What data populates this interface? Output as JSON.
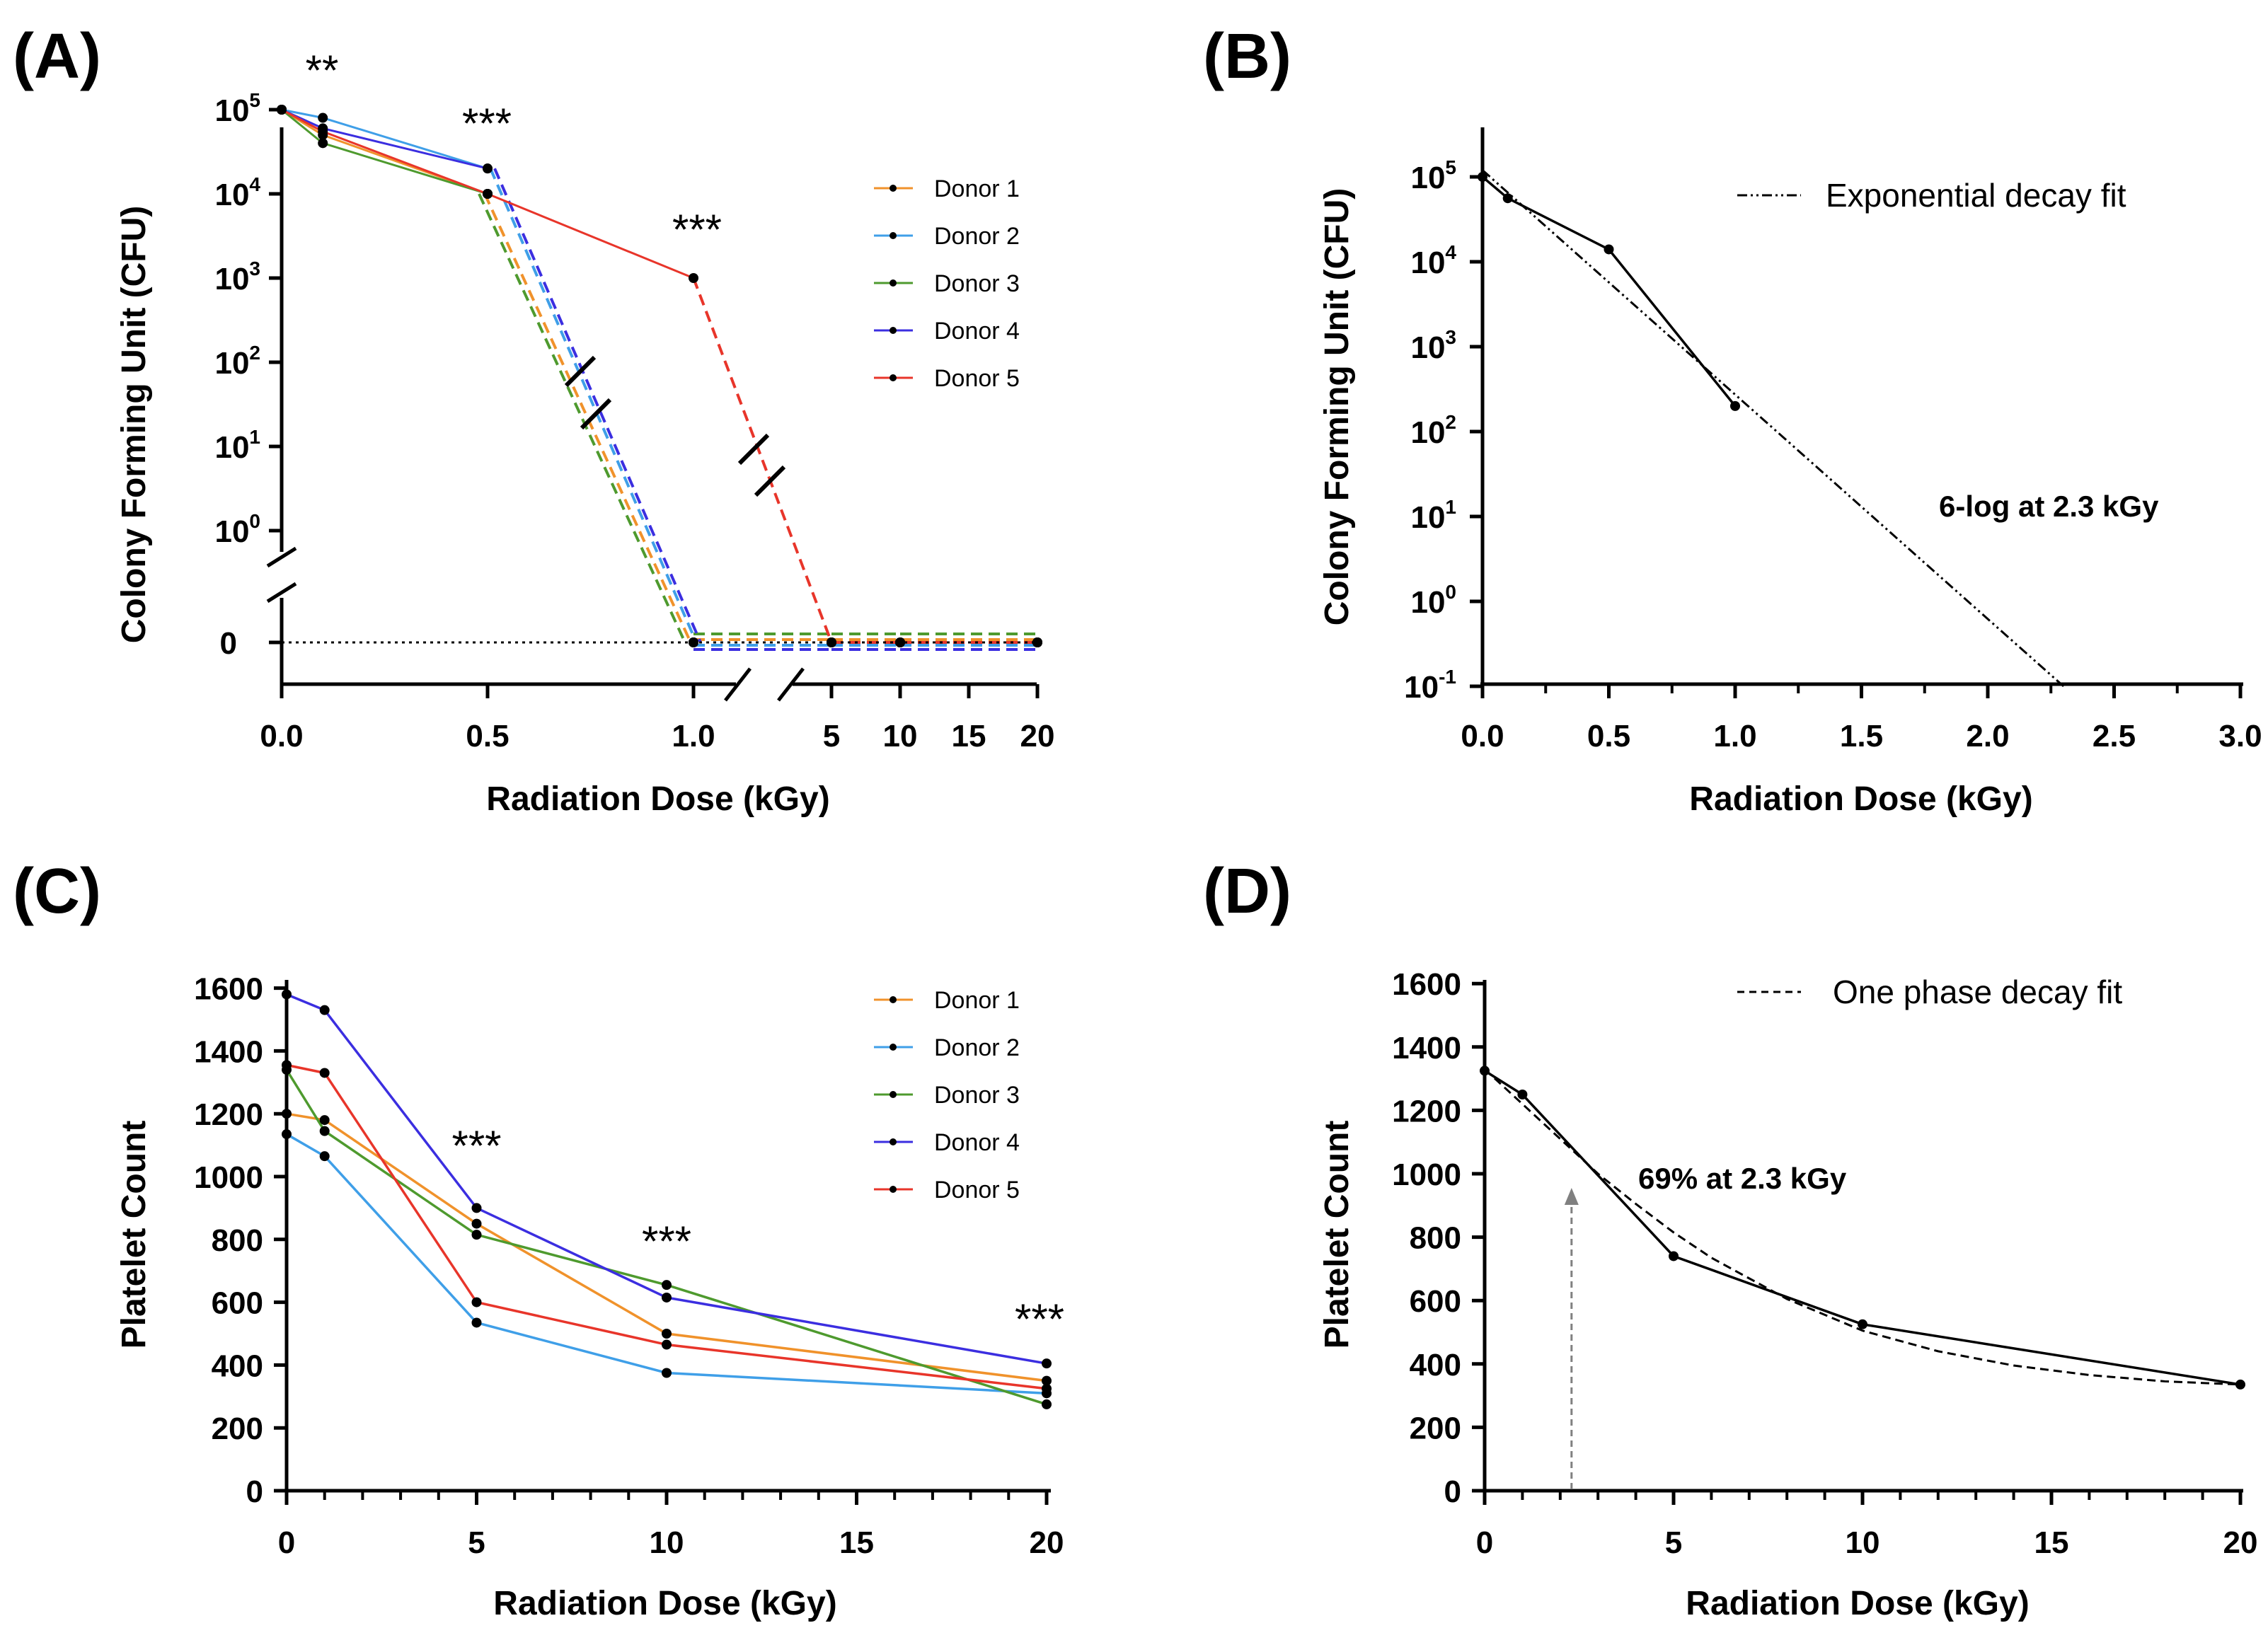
{
  "colors": {
    "donor1": "#f0922b",
    "donor2": "#3f9fe8",
    "donor3": "#4e9a2e",
    "donor4": "#3b2ee0",
    "donor5": "#e8352a",
    "fit": "#000000",
    "arrow": "#808080"
  },
  "chart_data": [
    {
      "panel": "(A)",
      "type": "line",
      "title": "",
      "xlabel": "Radiation Dose (kGy)",
      "ylabel": "Colony Forming Unit (CFU)",
      "yscale": "log, broken axis with 0",
      "x_ticks_left": [
        "0.0",
        "0.5",
        "1.0"
      ],
      "x_ticks_right": [
        "5",
        "10",
        "15",
        "20"
      ],
      "y_tick_exponents": [
        "5",
        "4",
        "3",
        "2",
        "1",
        "0"
      ],
      "y_zero_label": "0",
      "legend": [
        "Donor 1",
        "Donor 2",
        "Donor 3",
        "Donor 4",
        "Donor 5"
      ],
      "x": [
        0,
        0.1,
        0.5,
        1.0,
        5,
        10,
        20
      ],
      "series": [
        {
          "name": "Donor 1",
          "values": [
            100000,
            50000,
            10000,
            0,
            0,
            0,
            0
          ]
        },
        {
          "name": "Donor 2",
          "values": [
            100000,
            80000,
            20000,
            0,
            0,
            0,
            0
          ]
        },
        {
          "name": "Donor 3",
          "values": [
            100000,
            40000,
            10000,
            0,
            0,
            0,
            0
          ]
        },
        {
          "name": "Donor 4",
          "values": [
            100000,
            60000,
            20000,
            0,
            0,
            0,
            0
          ]
        },
        {
          "name": "Donor 5",
          "values": [
            100000,
            55000,
            10000,
            1000,
            0,
            0,
            0
          ]
        }
      ],
      "significance": [
        {
          "x": 0.1,
          "label": "**"
        },
        {
          "x": 0.5,
          "label": "***"
        },
        {
          "x": 1.0,
          "label": "***"
        }
      ]
    },
    {
      "panel": "(B)",
      "type": "line",
      "xlabel": "Radiation Dose (kGy)",
      "ylabel": "Colony Forming Unit (CFU)",
      "yscale": "log",
      "xlim": [
        0,
        3.0
      ],
      "x_ticks": [
        "0.0",
        "0.5",
        "1.0",
        "1.5",
        "2.0",
        "2.5",
        "3.0"
      ],
      "y_tick_exponents": [
        "5",
        "4",
        "3",
        "2",
        "1",
        "0",
        "-1"
      ],
      "legend": [
        "Exponential decay fit"
      ],
      "annotation": "6-log at 2.3 kGy",
      "x": [
        0,
        0.1,
        0.5,
        1.0
      ],
      "values": [
        100000,
        56000,
        14000,
        200
      ],
      "fit_x": [
        0,
        2.3
      ],
      "fit_y": [
        120000,
        0.1
      ]
    },
    {
      "panel": "(C)",
      "type": "line",
      "xlabel": "Radiation Dose (kGy)",
      "ylabel": "Platelet Count",
      "ylim": [
        0,
        1600
      ],
      "xlim": [
        0,
        20
      ],
      "x_ticks": [
        "0",
        "5",
        "10",
        "15",
        "20"
      ],
      "y_ticks": [
        "0",
        "200",
        "400",
        "600",
        "800",
        "1000",
        "1200",
        "1400",
        "1600"
      ],
      "legend": [
        "Donor 1",
        "Donor 2",
        "Donor 3",
        "Donor 4",
        "Donor 5"
      ],
      "x": [
        0,
        1,
        5,
        10,
        20
      ],
      "series": [
        {
          "name": "Donor 1",
          "values": [
            1200,
            1180,
            850,
            500,
            350
          ]
        },
        {
          "name": "Donor 2",
          "values": [
            1135,
            1065,
            535,
            375,
            310
          ]
        },
        {
          "name": "Donor 3",
          "values": [
            1340,
            1145,
            815,
            655,
            275
          ]
        },
        {
          "name": "Donor 4",
          "values": [
            1580,
            1530,
            900,
            615,
            405
          ]
        },
        {
          "name": "Donor 5",
          "values": [
            1355,
            1330,
            600,
            465,
            325
          ]
        }
      ],
      "significance": [
        {
          "x": 5,
          "label": "***"
        },
        {
          "x": 10,
          "label": "***"
        },
        {
          "x": 20,
          "label": "***"
        }
      ]
    },
    {
      "panel": "(D)",
      "type": "line",
      "xlabel": "Radiation Dose (kGy)",
      "ylabel": "Platelet Count",
      "ylim": [
        0,
        1600
      ],
      "xlim": [
        0,
        20
      ],
      "x_ticks": [
        "0",
        "5",
        "10",
        "15",
        "20"
      ],
      "y_ticks": [
        "0",
        "200",
        "400",
        "600",
        "800",
        "1000",
        "1200",
        "1400",
        "1600"
      ],
      "legend": [
        "One phase decay fit"
      ],
      "annotation": "69% at 2.3 kGy",
      "arrow_x": 2.3,
      "arrow_top_value": 1000,
      "x": [
        0,
        1,
        5,
        10,
        20
      ],
      "values": [
        1325,
        1250,
        740,
        525,
        335
      ],
      "fit_x": [
        0,
        1,
        2,
        3,
        4,
        5,
        6,
        8,
        10,
        12,
        14,
        16,
        18,
        20
      ],
      "fit_y": [
        1330,
        1220,
        1110,
        1000,
        905,
        815,
        735,
        605,
        505,
        440,
        395,
        365,
        345,
        335
      ]
    }
  ]
}
